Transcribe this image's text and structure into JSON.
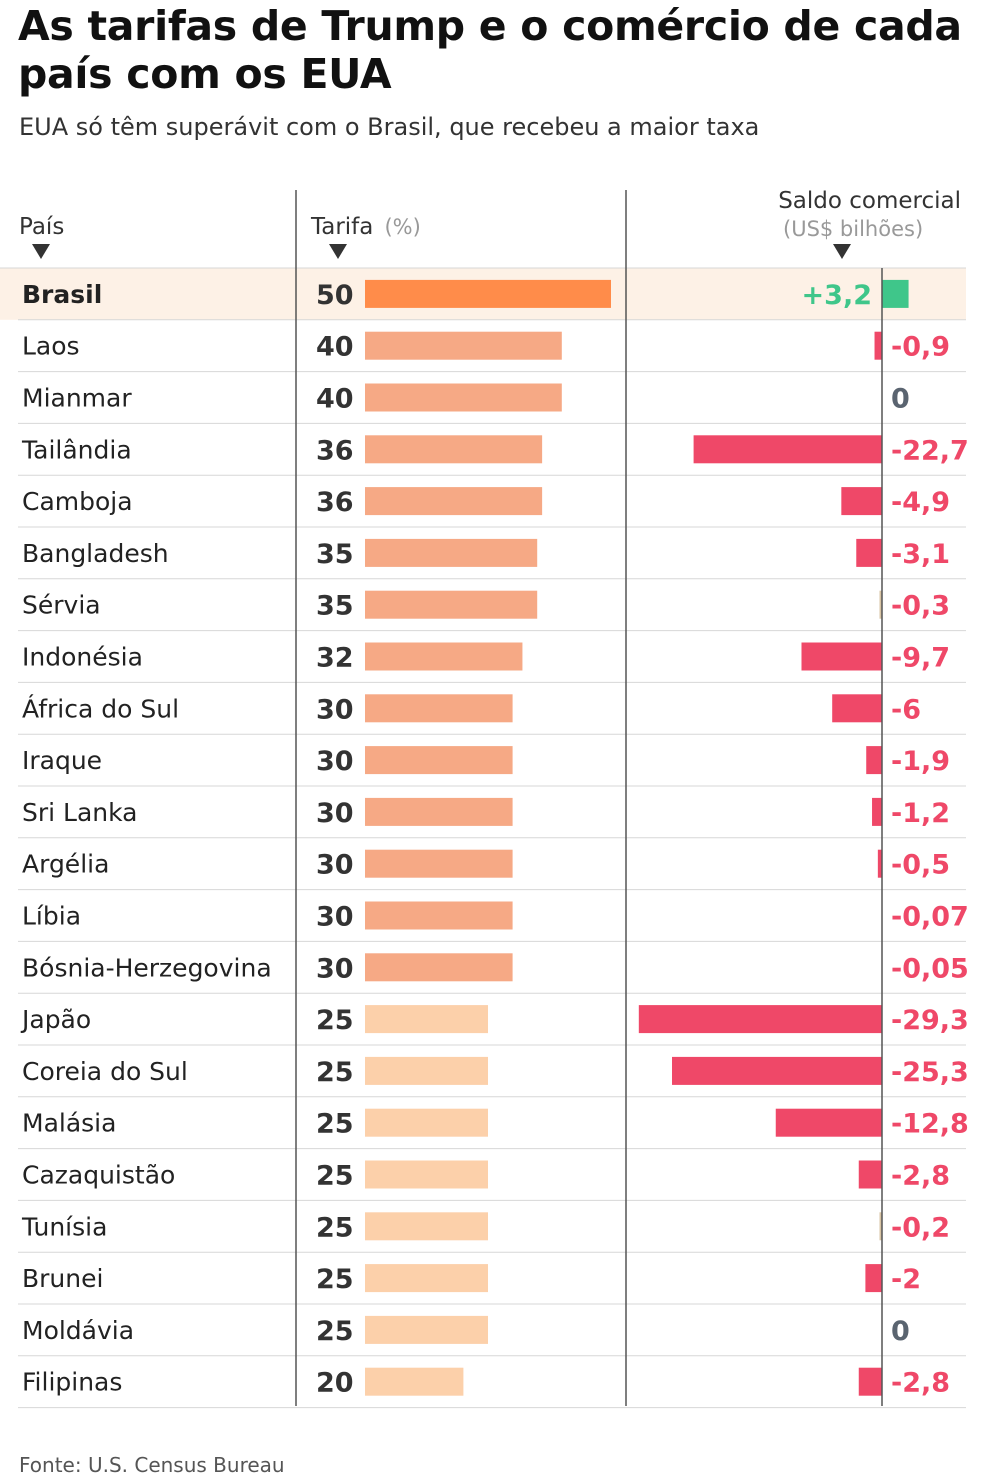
{
  "title": "As tarifas de Trump e o comércio de cada país com os EUA",
  "subtitle": "EUA só têm superávit com o Brasil, que recebeu a maior taxa",
  "source": "Fonte: U.S. Census Bureau",
  "headers": {
    "country": "País",
    "tariff": "Tarifa",
    "tariff_unit": "(%)",
    "balance": "Saldo comercial",
    "balance_unit": "(US$ bilhões)"
  },
  "colors": {
    "tariff_50": "#ff8c4a",
    "tariff_30_40": "#f6a985",
    "tariff_20_25": "#fcd0aa",
    "positive": "#3fc68a",
    "negative": "#ef4868",
    "near_zero": "#d8c4a4",
    "zero_text": "#5a6470",
    "highlight_row": "#fdf1e6"
  },
  "chart_data": {
    "type": "bar",
    "highlight": "Brasil",
    "categories": [
      "Brasil",
      "Laos",
      "Mianmar",
      "Tailândia",
      "Camboja",
      "Bangladesh",
      "Sérvia",
      "Indonésia",
      "África do Sul",
      "Iraque",
      "Sri Lanka",
      "Argélia",
      "Líbia",
      "Bósnia-Herzegovina",
      "Japão",
      "Coreia do Sul",
      "Malásia",
      "Cazaquistão",
      "Tunísia",
      "Brunei",
      "Moldávia",
      "Filipinas"
    ],
    "series": [
      {
        "name": "Tarifa (%)",
        "values": [
          50,
          40,
          40,
          36,
          36,
          35,
          35,
          32,
          30,
          30,
          30,
          30,
          30,
          30,
          25,
          25,
          25,
          25,
          25,
          25,
          25,
          20
        ],
        "labels": [
          "50",
          "40",
          "40",
          "36",
          "36",
          "35",
          "35",
          "32",
          "30",
          "30",
          "30",
          "30",
          "30",
          "30",
          "25",
          "25",
          "25",
          "25",
          "25",
          "25",
          "25",
          "20"
        ]
      },
      {
        "name": "Saldo comercial (US$ bilhões)",
        "values": [
          3.2,
          -0.9,
          0,
          -22.7,
          -4.9,
          -3.1,
          -0.3,
          -9.7,
          -6,
          -1.9,
          -1.2,
          -0.5,
          -0.07,
          -0.05,
          -29.3,
          -25.3,
          -12.8,
          -2.8,
          -0.2,
          -2,
          0,
          -2.8
        ],
        "labels": [
          "+3,2",
          "-0,9",
          "0",
          "-22,7",
          "-4,9",
          "-3,1",
          "-0,3",
          "-9,7",
          "-6",
          "-1,9",
          "-1,2",
          "-0,5",
          "-0,07",
          "-0,05",
          "-29,3",
          "-25,3",
          "-12,8",
          "-2,8",
          "-0,2",
          "-2",
          "0",
          "-2,8"
        ]
      }
    ]
  }
}
